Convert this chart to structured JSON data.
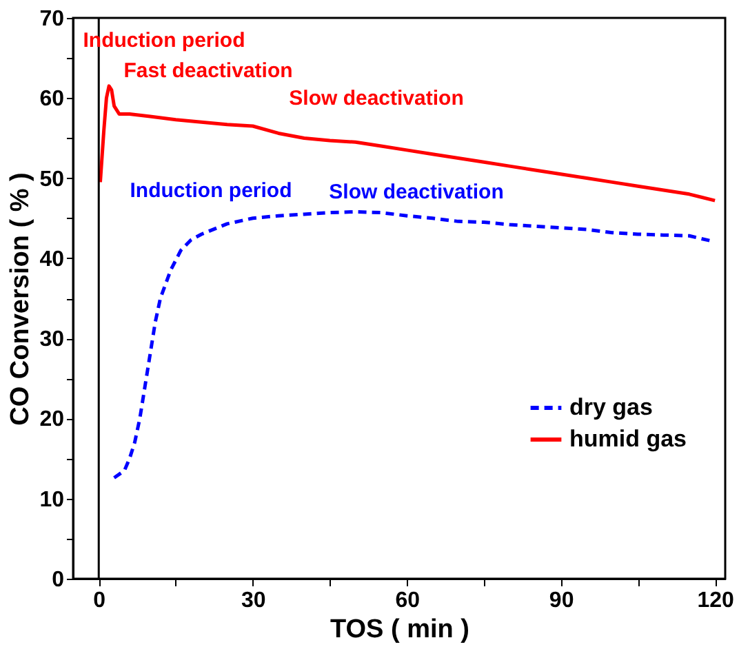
{
  "chart_data": {
    "type": "line",
    "xlabel": "TOS ( min )",
    "ylabel": "CO Conversion ( % )",
    "xlim": [
      -5,
      122
    ],
    "ylim": [
      0,
      70
    ],
    "xticks": [
      0,
      {
        "value": 15,
        "label": null
      },
      30,
      {
        "value": 45,
        "label": null
      },
      60,
      {
        "value": 75,
        "label": null
      },
      90,
      {
        "value": 105,
        "label": null
      },
      120
    ],
    "yticks": [
      0,
      {
        "value": 5,
        "label": null
      },
      10,
      {
        "value": 15,
        "label": null
      },
      20,
      {
        "value": 25,
        "label": null
      },
      30,
      {
        "value": 35,
        "label": null
      },
      40,
      {
        "value": 45,
        "label": null
      },
      50,
      {
        "value": 55,
        "label": null
      },
      60,
      {
        "value": 65,
        "label": null
      },
      70
    ],
    "grid": false,
    "legend": "right",
    "marker": "none",
    "series": [
      {
        "name": "dry gas",
        "color": "#0000ff",
        "line_style": "dashed",
        "x": [
          3,
          5,
          6,
          7,
          8,
          9,
          10,
          11,
          12,
          14,
          16,
          18,
          20,
          25,
          30,
          35,
          40,
          45,
          50,
          55,
          60,
          65,
          70,
          75,
          80,
          85,
          90,
          95,
          100,
          105,
          110,
          115,
          119
        ],
        "values": [
          12.6,
          13.5,
          15,
          17,
          20,
          24,
          28,
          32,
          35,
          38.5,
          41,
          42.3,
          43,
          44.3,
          45,
          45.3,
          45.5,
          45.7,
          45.8,
          45.7,
          45.3,
          45,
          44.6,
          44.5,
          44.2,
          44,
          43.8,
          43.6,
          43.2,
          43,
          42.9,
          42.8,
          42.2
        ]
      },
      {
        "name": "humid gas",
        "color": "#ff0000",
        "line_style": "solid",
        "x": [
          0.3,
          1,
          1.5,
          2,
          2.5,
          3,
          4,
          6,
          10,
          15,
          20,
          25,
          30,
          35,
          40,
          45,
          50,
          55,
          60,
          65,
          70,
          75,
          80,
          85,
          90,
          95,
          100,
          105,
          110,
          115,
          120
        ],
        "values": [
          49.5,
          56,
          60,
          61.5,
          61,
          59,
          58,
          58,
          57.7,
          57.3,
          57,
          56.7,
          56.5,
          55.6,
          55,
          54.7,
          54.5,
          54,
          53.5,
          53,
          52.5,
          52,
          51.5,
          51,
          50.5,
          50,
          49.5,
          49,
          48.5,
          48,
          47.2
        ]
      }
    ],
    "ref_lines": [
      {
        "axis": "x",
        "value": 0,
        "color": "#000000"
      }
    ],
    "annotations": [
      "Induction period",
      "Fast deactivation",
      "Slow deactivation",
      "Induction period",
      "Slow deactivation"
    ]
  }
}
